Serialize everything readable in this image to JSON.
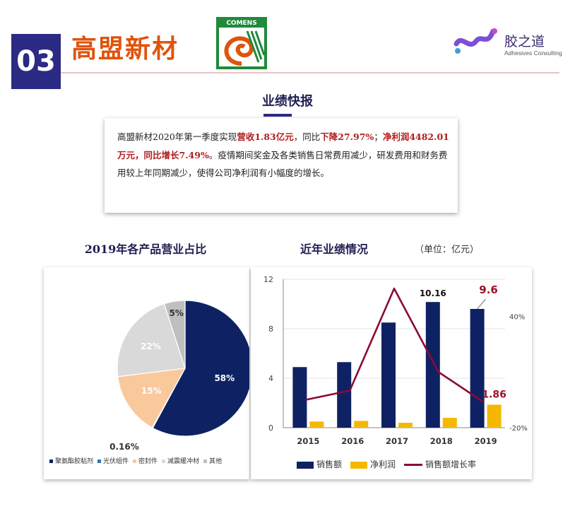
{
  "header": {
    "section_number": "03",
    "company_name": "高盟新材",
    "company_logo_text": "COMENS",
    "brand_name": "胶之道",
    "brand_subtitle": "Adhesives Consulting"
  },
  "report": {
    "title": "业绩快报",
    "segments": [
      {
        "text": "高盟新材2020年第一季度实现",
        "highlight": false
      },
      {
        "text": "营收1.83亿元",
        "highlight": true
      },
      {
        "text": "，同比",
        "highlight": false
      },
      {
        "text": "下降27.97%",
        "highlight": true
      },
      {
        "text": "；",
        "highlight": false
      },
      {
        "text": "净利润4482.01万元，同比增长7.49%",
        "highlight": true
      },
      {
        "text": "。疫情期间奖金及各类销售日常费用减少，研发费用和财务费用较上年同期减少，使得公司净利润有小幅度的增长。",
        "highlight": false
      }
    ]
  },
  "colors": {
    "accent_navy": "#2b2a84",
    "title_orange": "#e0530c",
    "highlight_red": "#b01d1d",
    "bar_navy": "#0e2263",
    "bar_yellow": "#f5b800",
    "line_maroon": "#8b0a35"
  },
  "pie": {
    "title": "2019年各产品营业占比"
  },
  "bars": {
    "title": "近年业绩情况",
    "unit": "（单位：亿元）"
  },
  "chart_data": [
    {
      "type": "pie",
      "title": "2019年各产品营业占比",
      "slices": [
        {
          "name": "聚氨酯胶粘剂",
          "value": 58,
          "label": "58%",
          "color": "#0e2263"
        },
        {
          "name": "光伏组件",
          "value": 0.16,
          "label": "0.16%",
          "color": "#2e74b5"
        },
        {
          "name": "密封件",
          "value": 15,
          "label": "15%",
          "color": "#f9c89b"
        },
        {
          "name": "减震缓冲材",
          "value": 22,
          "label": "22%",
          "color": "#d9d9d9"
        },
        {
          "name": "其他",
          "value": 5,
          "label": "5%",
          "color": "#bfbfbf"
        }
      ],
      "legend_position": "bottom"
    },
    {
      "type": "bar",
      "title": "近年业绩情况",
      "unit": "（单位：亿元）",
      "categories": [
        "2015",
        "2016",
        "2017",
        "2018",
        "2019"
      ],
      "series": [
        {
          "name": "销售额",
          "kind": "bar",
          "axis": "left",
          "color": "#0e2263",
          "values": [
            4.9,
            5.3,
            8.5,
            10.16,
            9.6
          ]
        },
        {
          "name": "净利润",
          "kind": "bar",
          "axis": "left",
          "color": "#f5b800",
          "values": [
            0.5,
            0.55,
            0.4,
            0.8,
            1.86
          ]
        },
        {
          "name": "销售额增长率",
          "kind": "line",
          "axis": "right",
          "color": "#8b0a35",
          "values": [
            -5,
            0,
            55,
            10,
            -6
          ]
        }
      ],
      "data_labels": [
        {
          "series": "销售额",
          "category": "2018",
          "text": "10.16"
        },
        {
          "series": "销售额",
          "category": "2019",
          "text": "9.6"
        },
        {
          "series": "净利润",
          "category": "2019",
          "text": "1.86"
        }
      ],
      "y_left": {
        "min": 0,
        "max": 12,
        "ticks": [
          "0",
          "4",
          "8",
          "12"
        ]
      },
      "y_right": {
        "min": -20,
        "max": 60,
        "ticks": [
          "-20%",
          "40%"
        ],
        "tick_values": [
          -20,
          40
        ]
      },
      "legend_position": "bottom",
      "grid": true
    }
  ]
}
